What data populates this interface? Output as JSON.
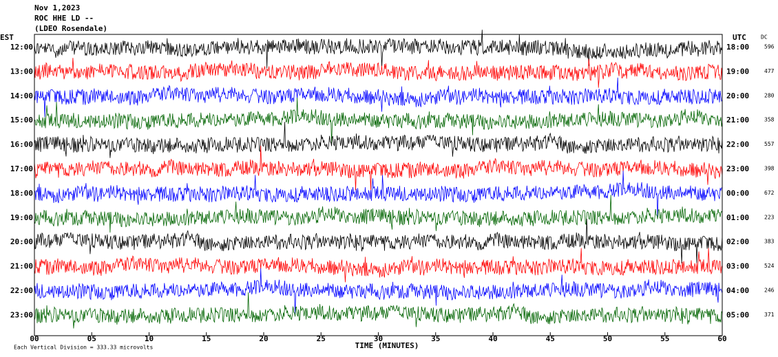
{
  "chart_data": {
    "type": "helicorder",
    "title": "Nov 1,2023",
    "subtitle": "ROC HHE LD --",
    "station": "(LDEO Rosendale)",
    "left_axis_label": "EST",
    "right_axis_label": "UTC",
    "dc_label": "DC",
    "x_axis_label": "TIME (MINUTES)",
    "footer": "Each Vertical Division =  333.33 microvolts",
    "colors": [
      "#000000",
      "#ff0000",
      "#0000ff",
      "#006400"
    ],
    "xlim": [
      0,
      60
    ],
    "xticks": [
      {
        "value": 0,
        "label": "00"
      },
      {
        "value": 5,
        "label": "05"
      },
      10,
      15,
      20,
      25,
      30,
      35,
      40,
      45,
      50,
      55,
      60
    ],
    "rows": [
      {
        "est": "12:00",
        "utc": "18:00",
        "dc": 596
      },
      {
        "est": "13:00",
        "utc": "19:00",
        "dc": 477
      },
      {
        "est": "14:00",
        "utc": "20:00",
        "dc": 280
      },
      {
        "est": "15:00",
        "utc": "21:00",
        "dc": 358
      },
      {
        "est": "16:00",
        "utc": "22:00",
        "dc": 557
      },
      {
        "est": "17:00",
        "utc": "23:00",
        "dc": 398
      },
      {
        "est": "18:00",
        "utc": "00:00",
        "dc": 672
      },
      {
        "est": "19:00",
        "utc": "01:00",
        "dc": 223
      },
      {
        "est": "20:00",
        "utc": "02:00",
        "dc": 383
      },
      {
        "est": "21:00",
        "utc": "03:00",
        "dc": 524
      },
      {
        "est": "22:00",
        "utc": "04:00",
        "dc": 246
      },
      {
        "est": "23:00",
        "utc": "05:00",
        "dc": 371
      }
    ]
  }
}
